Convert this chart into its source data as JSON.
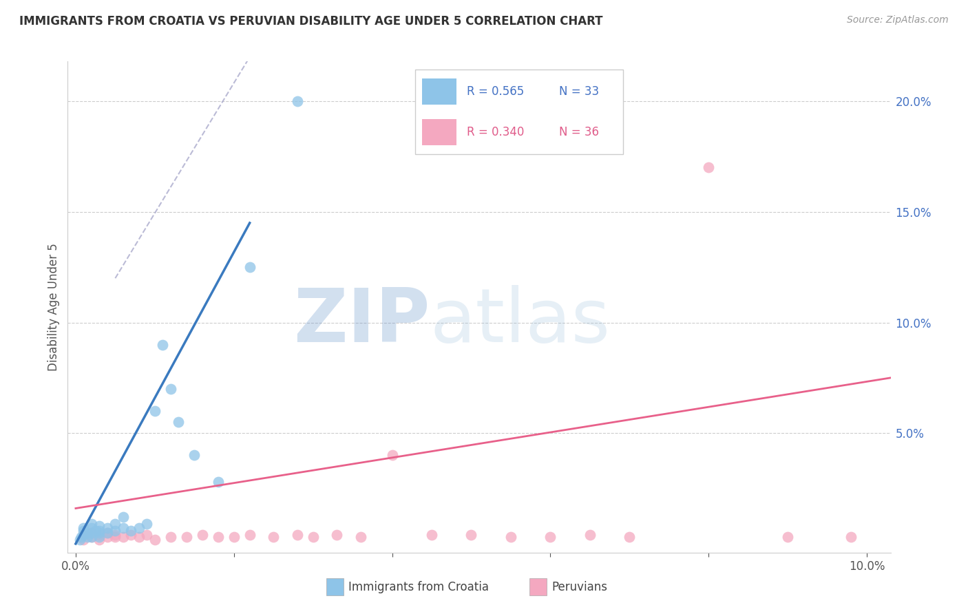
{
  "title": "IMMIGRANTS FROM CROATIA VS PERUVIAN DISABILITY AGE UNDER 5 CORRELATION CHART",
  "source": "Source: ZipAtlas.com",
  "ylabel": "Disability Age Under 5",
  "blue_color": "#8ec4e8",
  "pink_color": "#f4a8c0",
  "blue_line_color": "#3a7abf",
  "pink_line_color": "#e8608a",
  "right_ytick_vals": [
    0.0,
    0.05,
    0.1,
    0.15,
    0.2
  ],
  "right_yticklabels": [
    "",
    "5.0%",
    "10.0%",
    "15.0%",
    "20.0%"
  ],
  "xlim": [
    -0.001,
    0.103
  ],
  "ylim": [
    -0.004,
    0.218
  ],
  "watermark_zip": "ZIP",
  "watermark_atlas": "atlas",
  "blue_scatter_x": [
    0.0005,
    0.0007,
    0.001,
    0.001,
    0.001,
    0.0015,
    0.0015,
    0.002,
    0.002,
    0.002,
    0.002,
    0.0025,
    0.003,
    0.003,
    0.003,
    0.003,
    0.004,
    0.004,
    0.005,
    0.005,
    0.006,
    0.006,
    0.007,
    0.008,
    0.009,
    0.01,
    0.011,
    0.012,
    0.013,
    0.015,
    0.018,
    0.022,
    0.028
  ],
  "blue_scatter_y": [
    0.002,
    0.003,
    0.004,
    0.006,
    0.007,
    0.003,
    0.005,
    0.003,
    0.005,
    0.007,
    0.009,
    0.006,
    0.003,
    0.005,
    0.006,
    0.008,
    0.005,
    0.007,
    0.006,
    0.009,
    0.007,
    0.012,
    0.006,
    0.007,
    0.009,
    0.06,
    0.09,
    0.07,
    0.055,
    0.04,
    0.028,
    0.125,
    0.2
  ],
  "pink_scatter_x": [
    0.001,
    0.001,
    0.002,
    0.002,
    0.003,
    0.003,
    0.004,
    0.004,
    0.005,
    0.005,
    0.006,
    0.007,
    0.008,
    0.009,
    0.01,
    0.012,
    0.014,
    0.016,
    0.018,
    0.02,
    0.022,
    0.025,
    0.028,
    0.03,
    0.033,
    0.036,
    0.04,
    0.045,
    0.05,
    0.055,
    0.06,
    0.065,
    0.07,
    0.08,
    0.09,
    0.098
  ],
  "pink_scatter_y": [
    0.002,
    0.004,
    0.003,
    0.005,
    0.002,
    0.004,
    0.003,
    0.005,
    0.003,
    0.004,
    0.003,
    0.004,
    0.003,
    0.004,
    0.002,
    0.003,
    0.003,
    0.004,
    0.003,
    0.003,
    0.004,
    0.003,
    0.004,
    0.003,
    0.004,
    0.003,
    0.04,
    0.004,
    0.004,
    0.003,
    0.003,
    0.004,
    0.003,
    0.17,
    0.003,
    0.003
  ],
  "blue_solid_line_x": [
    0.0,
    0.022
  ],
  "blue_solid_line_y": [
    0.0,
    0.145
  ],
  "blue_dash_line_x": [
    0.005,
    0.022
  ],
  "blue_dash_line_y": [
    0.12,
    0.22
  ],
  "pink_solid_line_x": [
    0.0,
    0.103
  ],
  "pink_solid_line_y": [
    0.016,
    0.075
  ]
}
